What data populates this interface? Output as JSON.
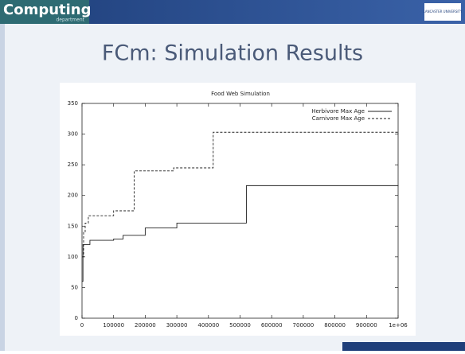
{
  "header": {
    "logo": "Computing",
    "sublogo": "department",
    "university": "LANCASTER UNIVERSITY"
  },
  "slide_title": "FCm: Simulation Results",
  "chart_data": {
    "type": "line",
    "step": true,
    "title": "Food Web Simulation",
    "series": [
      {
        "name": "Herbivore Max Age",
        "color": "#222222",
        "dash": false,
        "x": [
          0,
          3000,
          25000,
          100000,
          130000,
          200000,
          300000,
          520000,
          1000000
        ],
        "values": [
          60,
          120,
          127,
          129,
          135,
          147,
          155,
          216,
          215
        ]
      },
      {
        "name": "Carnivore Max Age",
        "color": "#222222",
        "dash": true,
        "x": [
          0,
          5000,
          10000,
          20000,
          100000,
          165000,
          290000,
          415000,
          1000000
        ],
        "values": [
          100,
          140,
          155,
          167,
          175,
          240,
          245,
          303,
          300
        ]
      }
    ],
    "xlim": [
      0,
      1000000
    ],
    "xticks": [
      0,
      100000,
      200000,
      300000,
      400000,
      500000,
      600000,
      700000,
      800000,
      900000,
      {
        "value": 1000000,
        "label": "1e+06"
      }
    ],
    "ylim": [
      0,
      350
    ],
    "yticks": [
      0,
      50,
      100,
      150,
      200,
      250,
      300,
      350
    ],
    "legend": "upper right"
  }
}
